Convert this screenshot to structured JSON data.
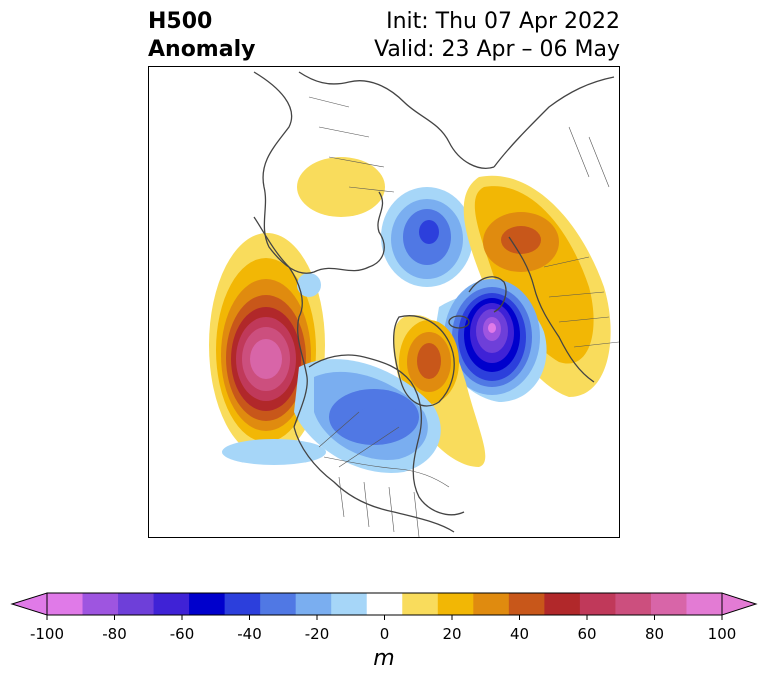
{
  "header": {
    "title_line1": "H500",
    "title_line2": "Anomaly",
    "init_text": "Init: Thu 07 Apr 2022",
    "valid_text": "Valid: 23 Apr – 06 May"
  },
  "map": {
    "projection": "polar-stereographic-north",
    "field": "500 hPa geopotential height anomaly",
    "anomaly_centers": [
      {
        "region": "NE Pacific off western North America",
        "sign": "positive",
        "peak": 90
      },
      {
        "region": "Central Canada / Hudson Bay",
        "sign": "negative",
        "peak": -40
      },
      {
        "region": "Greenland",
        "sign": "positive",
        "peak": 50
      },
      {
        "region": "North Atlantic / Scandinavia",
        "sign": "negative",
        "peak": -90
      },
      {
        "region": "Western Russia",
        "sign": "positive",
        "peak": 40
      },
      {
        "region": "Eastern Siberia",
        "sign": "positive",
        "peak": 20
      },
      {
        "region": "Arctic near Laptev Sea",
        "sign": "negative",
        "peak": -40
      }
    ]
  },
  "colorbar": {
    "unit": "m",
    "levels": [
      -100,
      -90,
      -80,
      -70,
      -60,
      -50,
      -40,
      -30,
      -20,
      -10,
      10,
      20,
      30,
      40,
      50,
      60,
      70,
      80,
      90,
      100
    ],
    "tick_labels": [
      "-100",
      "-80",
      "-60",
      "-40",
      "-20",
      "0",
      "20",
      "40",
      "60",
      "80",
      "100"
    ],
    "colors": [
      "#e07ae8",
      "#9e55e0",
      "#6e3fd9",
      "#3f22d6",
      "#0000cc",
      "#2c3fdc",
      "#5078e4",
      "#7aaef0",
      "#a6d6f8",
      "#ffffff",
      "#f9dc5c",
      "#f2b705",
      "#e08b0f",
      "#c8571a",
      "#b1282a",
      "#c0395a",
      "#cc4f7e",
      "#d865a8",
      "#e37bd4"
    ],
    "extend_min_color": "#e07ae8",
    "extend_max_color": "#e37bd4"
  }
}
